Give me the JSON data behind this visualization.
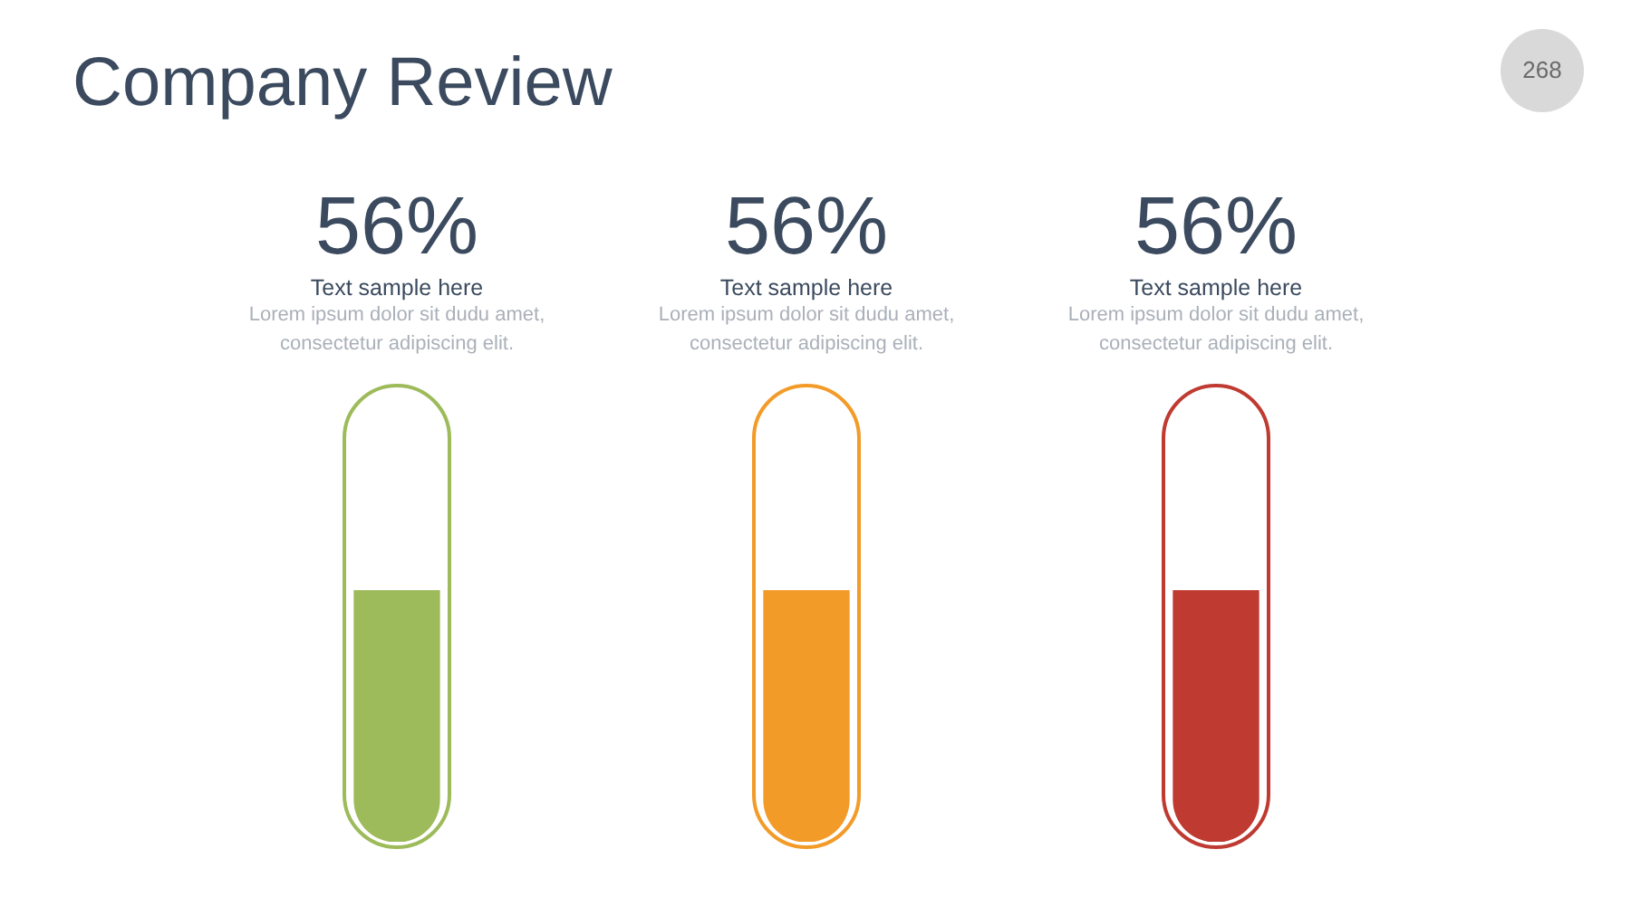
{
  "chart_data": {
    "type": "bar",
    "title": "Company Review",
    "categories": [
      "Text sample here",
      "Text sample here",
      "Text sample here"
    ],
    "values": [
      56,
      56,
      56
    ],
    "value_labels": [
      "56%",
      "56%",
      "56%"
    ],
    "colors": [
      "#9dbb5a",
      "#f29b29",
      "#bf3a30"
    ],
    "annotations": [
      "268",
      "Lorem ipsum dolor sit dudu amet, consectetur adipiscing elit.",
      "Lorem ipsum dolor sit dudu amet, consectetur adipiscing elit.",
      "Lorem ipsum dolor sit dudu amet, consectetur adipiscing elit."
    ]
  }
}
